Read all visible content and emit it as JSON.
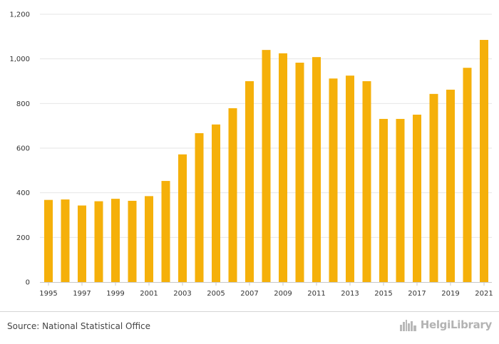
{
  "chart_data": {
    "type": "bar",
    "title": "",
    "xlabel": "",
    "ylabel": "",
    "ylim": [
      0,
      1200
    ],
    "y_ticks": [
      0,
      200,
      400,
      600,
      800,
      1000,
      1200
    ],
    "y_tick_labels": [
      "0",
      "200",
      "400",
      "600",
      "800",
      "1,000",
      "1,200"
    ],
    "categories": [
      "1995",
      "1996",
      "1997",
      "1998",
      "1999",
      "2000",
      "2001",
      "2002",
      "2003",
      "2004",
      "2005",
      "2006",
      "2007",
      "2008",
      "2009",
      "2010",
      "2011",
      "2012",
      "2013",
      "2014",
      "2015",
      "2016",
      "2017",
      "2018",
      "2019",
      "2020",
      "2021"
    ],
    "x_tick_labels": [
      "1995",
      "1997",
      "1999",
      "2001",
      "2003",
      "2005",
      "2007",
      "2009",
      "2011",
      "2013",
      "2015",
      "2017",
      "2019",
      "2021"
    ],
    "values": [
      368,
      370,
      343,
      362,
      373,
      364,
      385,
      453,
      572,
      667,
      706,
      779,
      900,
      1040,
      1025,
      983,
      1008,
      912,
      925,
      900,
      731,
      731,
      750,
      843,
      862,
      960,
      1085
    ],
    "grid": true,
    "legend": "none",
    "bar_color": "#f5b00a",
    "grid_color": "#e6e6e6",
    "axis_color": "#c8c8c8"
  },
  "footer": {
    "source": "Source: National Statistical Office",
    "logo_text": "HelgiLibrary",
    "logo_icon": "skyline-icon"
  }
}
